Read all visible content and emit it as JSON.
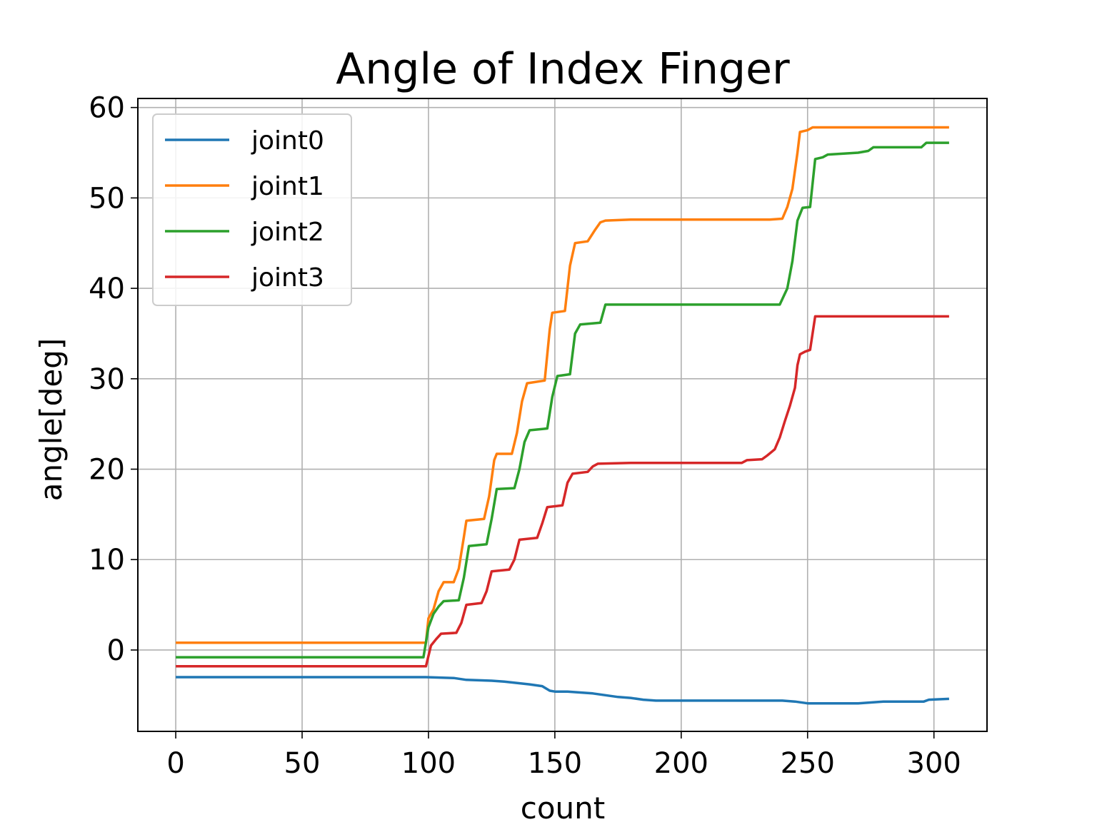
{
  "chart_data": {
    "type": "line",
    "title": "Angle of Index Finger",
    "xlabel": "count",
    "ylabel": "angle[deg]",
    "xlim": [
      -15,
      321
    ],
    "ylim": [
      -9,
      61
    ],
    "xticks": [
      0,
      50,
      100,
      150,
      200,
      250,
      300
    ],
    "yticks": [
      0,
      10,
      20,
      30,
      40,
      50,
      60
    ],
    "grid": true,
    "legend_position": "upper-left",
    "series": [
      {
        "name": "joint0",
        "color": "#1f77b4",
        "points": [
          [
            0,
            -3.0
          ],
          [
            50,
            -3.0
          ],
          [
            99,
            -3.0
          ],
          [
            110,
            -3.1
          ],
          [
            115,
            -3.3
          ],
          [
            125,
            -3.4
          ],
          [
            130,
            -3.5
          ],
          [
            140,
            -3.8
          ],
          [
            145,
            -4.0
          ],
          [
            148,
            -4.5
          ],
          [
            150,
            -4.6
          ],
          [
            155,
            -4.6
          ],
          [
            160,
            -4.7
          ],
          [
            165,
            -4.8
          ],
          [
            170,
            -5.0
          ],
          [
            175,
            -5.2
          ],
          [
            180,
            -5.3
          ],
          [
            185,
            -5.5
          ],
          [
            190,
            -5.6
          ],
          [
            200,
            -5.6
          ],
          [
            240,
            -5.6
          ],
          [
            245,
            -5.7
          ],
          [
            250,
            -5.9
          ],
          [
            260,
            -5.9
          ],
          [
            270,
            -5.9
          ],
          [
            275,
            -5.8
          ],
          [
            280,
            -5.7
          ],
          [
            296,
            -5.7
          ],
          [
            298,
            -5.5
          ],
          [
            306,
            -5.4
          ]
        ]
      },
      {
        "name": "joint1",
        "color": "#ff7f0e",
        "points": [
          [
            0,
            0.8
          ],
          [
            50,
            0.8
          ],
          [
            99,
            0.8
          ],
          [
            100,
            3.5
          ],
          [
            102,
            4.5
          ],
          [
            104,
            6.5
          ],
          [
            106,
            7.5
          ],
          [
            110,
            7.5
          ],
          [
            112,
            9
          ],
          [
            114,
            12.5
          ],
          [
            115,
            14.3
          ],
          [
            122,
            14.5
          ],
          [
            124,
            17
          ],
          [
            126,
            21.0
          ],
          [
            127,
            21.7
          ],
          [
            133,
            21.7
          ],
          [
            135,
            24
          ],
          [
            137,
            27.5
          ],
          [
            139,
            29.5
          ],
          [
            146,
            29.8
          ],
          [
            148,
            35.5
          ],
          [
            149,
            37.3
          ],
          [
            154,
            37.5
          ],
          [
            156,
            42.5
          ],
          [
            158,
            45.0
          ],
          [
            163,
            45.2
          ],
          [
            166,
            46.5
          ],
          [
            168,
            47.3
          ],
          [
            170,
            47.5
          ],
          [
            180,
            47.6
          ],
          [
            200,
            47.6
          ],
          [
            235,
            47.6
          ],
          [
            240,
            47.7
          ],
          [
            242,
            49
          ],
          [
            244,
            51
          ],
          [
            246,
            55
          ],
          [
            247,
            57.3
          ],
          [
            250,
            57.5
          ],
          [
            252,
            57.8
          ],
          [
            270,
            57.8
          ],
          [
            300,
            57.8
          ],
          [
            306,
            57.8
          ]
        ]
      },
      {
        "name": "joint2",
        "color": "#2ca02c",
        "points": [
          [
            0,
            -0.8
          ],
          [
            50,
            -0.8
          ],
          [
            98,
            -0.8
          ],
          [
            100,
            2.5
          ],
          [
            102,
            4
          ],
          [
            104,
            4.8
          ],
          [
            106,
            5.4
          ],
          [
            112,
            5.5
          ],
          [
            114,
            8
          ],
          [
            116,
            11.5
          ],
          [
            123,
            11.7
          ],
          [
            125,
            14.5
          ],
          [
            127,
            17.8
          ],
          [
            134,
            17.9
          ],
          [
            136,
            20
          ],
          [
            138,
            23
          ],
          [
            140,
            24.3
          ],
          [
            147,
            24.5
          ],
          [
            149,
            28
          ],
          [
            151,
            30.3
          ],
          [
            156,
            30.5
          ],
          [
            158,
            35
          ],
          [
            160,
            36
          ],
          [
            168,
            36.2
          ],
          [
            170,
            38.2
          ],
          [
            180,
            38.2
          ],
          [
            200,
            38.2
          ],
          [
            239,
            38.2
          ],
          [
            242,
            40
          ],
          [
            244,
            43
          ],
          [
            246,
            47.5
          ],
          [
            248,
            48.9
          ],
          [
            251,
            49
          ],
          [
            253,
            54.3
          ],
          [
            256,
            54.5
          ],
          [
            258,
            54.8
          ],
          [
            270,
            55
          ],
          [
            274,
            55.2
          ],
          [
            276,
            55.6
          ],
          [
            295,
            55.6
          ],
          [
            297,
            56.1
          ],
          [
            306,
            56.1
          ]
        ]
      },
      {
        "name": "joint3",
        "color": "#d62728",
        "points": [
          [
            0,
            -1.8
          ],
          [
            50,
            -1.8
          ],
          [
            99,
            -1.8
          ],
          [
            101,
            0.5
          ],
          [
            103,
            1.2
          ],
          [
            105,
            1.8
          ],
          [
            111,
            1.9
          ],
          [
            113,
            3
          ],
          [
            115,
            5.0
          ],
          [
            121,
            5.2
          ],
          [
            123,
            6.5
          ],
          [
            125,
            8.7
          ],
          [
            132,
            8.9
          ],
          [
            134,
            10
          ],
          [
            136,
            12.2
          ],
          [
            143,
            12.4
          ],
          [
            145,
            14
          ],
          [
            147,
            15.8
          ],
          [
            153,
            16
          ],
          [
            155,
            18.5
          ],
          [
            157,
            19.5
          ],
          [
            163,
            19.7
          ],
          [
            165,
            20.3
          ],
          [
            167,
            20.6
          ],
          [
            180,
            20.7
          ],
          [
            200,
            20.7
          ],
          [
            224,
            20.7
          ],
          [
            226,
            21
          ],
          [
            232,
            21.1
          ],
          [
            234,
            21.5
          ],
          [
            237,
            22.2
          ],
          [
            239,
            23.5
          ],
          [
            241,
            25.3
          ],
          [
            243,
            27
          ],
          [
            245,
            29
          ],
          [
            246,
            31.5
          ],
          [
            247,
            32.7
          ],
          [
            249,
            33
          ],
          [
            251,
            33.2
          ],
          [
            253,
            36.9
          ],
          [
            270,
            36.9
          ],
          [
            306,
            36.9
          ]
        ]
      }
    ]
  }
}
